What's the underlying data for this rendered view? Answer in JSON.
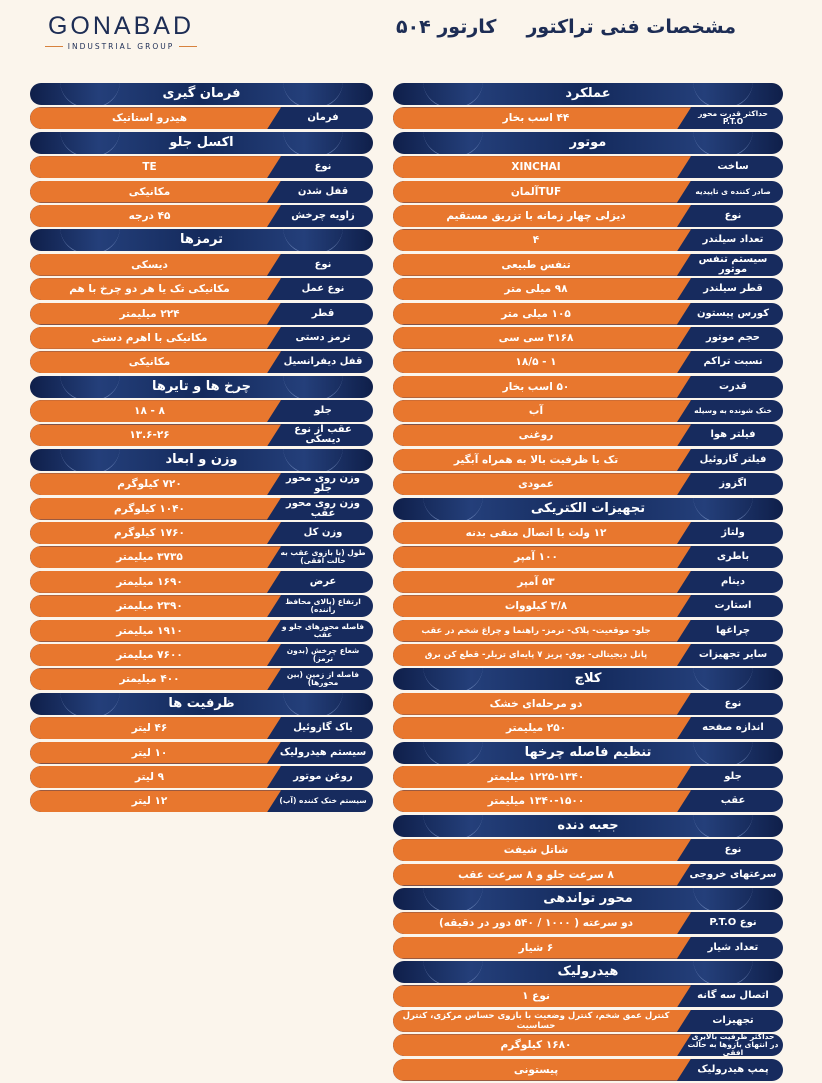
{
  "logo": {
    "name": "GONABAD",
    "subtitle": "INDUSTRIAL GROUP"
  },
  "title": {
    "main": "مشخصات فنی تراکتور",
    "model": "کارتور ۵۰۴"
  },
  "colors": {
    "navy": "#172b5e",
    "orange": "#e8772e",
    "background": "#fbf5ec"
  },
  "right_column": [
    {
      "header": "عملکرد",
      "rows": [
        {
          "label": "حداکثر قدرت محور P.T.O",
          "value": "۴۴ اسب بخار"
        }
      ]
    },
    {
      "header": "موتور",
      "rows": [
        {
          "label": "ساخت",
          "value": "XINCHAI"
        },
        {
          "label": "صادر کننده ی تاییدیه",
          "value": "TUFآلمان"
        },
        {
          "label": "نوع",
          "value": "دیزلی چهار زمانه با تزریق مستقیم"
        },
        {
          "label": "تعداد سیلندر",
          "value": "۴"
        },
        {
          "label": "سیستم تنفس موتور",
          "value": "تنفس طبیعی"
        },
        {
          "label": "قطر سیلندر",
          "value": "۹۸ میلی متر"
        },
        {
          "label": "کورس پیستون",
          "value": "۱۰۵ میلی متر"
        },
        {
          "label": "حجم موتور",
          "value": "۳۱۶۸ سی سی"
        },
        {
          "label": "نسبت تراکم",
          "value": "۱ - ۱۸/۵"
        },
        {
          "label": "قدرت",
          "value": "۵۰ اسب بخار"
        },
        {
          "label": "خنک شونده به وسیله",
          "value": "آب"
        },
        {
          "label": "فیلتر هوا",
          "value": "روغنی"
        },
        {
          "label": "فیلتر گازوئیل",
          "value": "تک با ظرفیت بالا به همراه آبگیر"
        },
        {
          "label": "اگزوز",
          "value": "عمودی"
        }
      ]
    },
    {
      "header": "تجهیزات الکتریکی",
      "rows": [
        {
          "label": "ولتاژ",
          "value": "۱۲ ولت با اتصال منفی بدنه"
        },
        {
          "label": "باطری",
          "value": "۱۰۰ آمپر"
        },
        {
          "label": "دینام",
          "value": "۵۳ آمپر"
        },
        {
          "label": "استارت",
          "value": "۳/۸ کیلووات"
        },
        {
          "label": "چراغها",
          "value": "جلو- موقعیت- پلاک- ترمز- راهنما و چراغ شخم در عقب"
        },
        {
          "label": "سایر تجهیزات",
          "value": "پانل دیجیتالی- بوق- پریز ۷ پایه‌ای تریلر- قطع کن برق"
        }
      ]
    },
    {
      "header": "کلاچ",
      "rows": [
        {
          "label": "نوع",
          "value": "دو مرحله‌ای خشک"
        },
        {
          "label": "اندازه صفحه",
          "value": "۲۵۰ میلیمتر"
        }
      ]
    },
    {
      "header": "تنظیم فاصله چرخها",
      "rows": [
        {
          "label": "جلو",
          "value": "۱۲۲۵-۱۳۴۰ میلیمتر"
        },
        {
          "label": "عقب",
          "value": "۱۳۴۰-۱۵۰۰ میلیمتر"
        }
      ]
    },
    {
      "header": "جعبه دنده",
      "rows": [
        {
          "label": "نوع",
          "value": "شاتل شیفت"
        },
        {
          "label": "سرعتهای خروجی",
          "value": "۸ سرعت جلو و ۸ سرعت عقب"
        }
      ]
    },
    {
      "header": "محور تواندهی",
      "rows": [
        {
          "label": "نوع P.T.O",
          "value": "دو سرعته ( ۱۰۰۰ / ۵۴۰ دور در دقیقه)"
        },
        {
          "label": "تعداد شیار",
          "value": "۶ شیار"
        }
      ]
    },
    {
      "header": "هیدرولیک",
      "rows": [
        {
          "label": "اتصال سه گانه",
          "value": "نوع ۱"
        },
        {
          "label": "تجهیزات",
          "value": "کنترل عمق شخم، کنترل وضعیت با بازوی حساس مرکزی، کنترل حساسیت"
        },
        {
          "label": "حداکثر ظرفیت بالابری در انتهای بازوها به حالت افقی",
          "value": "۱۶۸۰ کیلوگرم"
        },
        {
          "label": "پمپ هیدرولیک",
          "value": "پیستونی"
        }
      ]
    }
  ],
  "left_column": [
    {
      "header": "فرمان گیری",
      "rows": [
        {
          "label": "فرمان",
          "value": "هیدرو استاتیک"
        }
      ]
    },
    {
      "header": "اکسل جلو",
      "rows": [
        {
          "label": "نوع",
          "value": "TE"
        },
        {
          "label": "قفل شدن",
          "value": "مکانیکی"
        },
        {
          "label": "زاویه چرخش",
          "value": "۴۵ درجه"
        }
      ]
    },
    {
      "header": "ترمزها",
      "rows": [
        {
          "label": "نوع",
          "value": "دیسکی"
        },
        {
          "label": "نوع عمل",
          "value": "مکانیکی تک یا هر دو چرخ با هم"
        },
        {
          "label": "قطر",
          "value": "۲۲۴ میلیمتر"
        },
        {
          "label": "ترمز دستی",
          "value": "مکانیکی با اهرم دستی"
        },
        {
          "label": "قفل دیفرانسیل",
          "value": "مکانیکی"
        }
      ]
    },
    {
      "header": "چرخ ها و تایرها",
      "rows": [
        {
          "label": "جلو",
          "value": "۸ - ۱۸"
        },
        {
          "label": "عقب از نوع دیسکی",
          "value": "۱۳.۶-۲۶"
        }
      ]
    },
    {
      "header": "وزن و ابعاد",
      "rows": [
        {
          "label": "وزن روی محور جلو",
          "value": "۷۲۰ کیلوگرم"
        },
        {
          "label": "وزن روی محور عقب",
          "value": "۱۰۴۰ کیلوگرم"
        },
        {
          "label": "وزن کل",
          "value": "۱۷۶۰ کیلوگرم"
        },
        {
          "label": "طول (با بازوی عقب به حالت افقی)",
          "value": "۳۷۳۵ میلیمتر"
        },
        {
          "label": "عرض",
          "value": "۱۶۹۰ میلیمتر"
        },
        {
          "label": "ارتفاع (بالای محافظ راننده)",
          "value": "۲۳۹۰ میلیمتر"
        },
        {
          "label": "فاصله محورهای جلو و عقب",
          "value": "۱۹۱۰ میلیمتر"
        },
        {
          "label": "شعاع چرخش (بدون ترمز)",
          "value": "۷۶۰۰ میلیمتر"
        },
        {
          "label": "فاصله از زمین (بین محورها)",
          "value": "۴۰۰ میلیمتر"
        }
      ]
    },
    {
      "header": "ظرفیت ها",
      "rows": [
        {
          "label": "باک گازوئیل",
          "value": "۴۶ لیتر"
        },
        {
          "label": "سیستم هیدرولیک",
          "value": "۱۰ لیتر"
        },
        {
          "label": "روغن موتور",
          "value": "۹ لیتر"
        },
        {
          "label": "سیستم خنک کننده (آب)",
          "value": "۱۲ لیتر"
        }
      ]
    }
  ]
}
